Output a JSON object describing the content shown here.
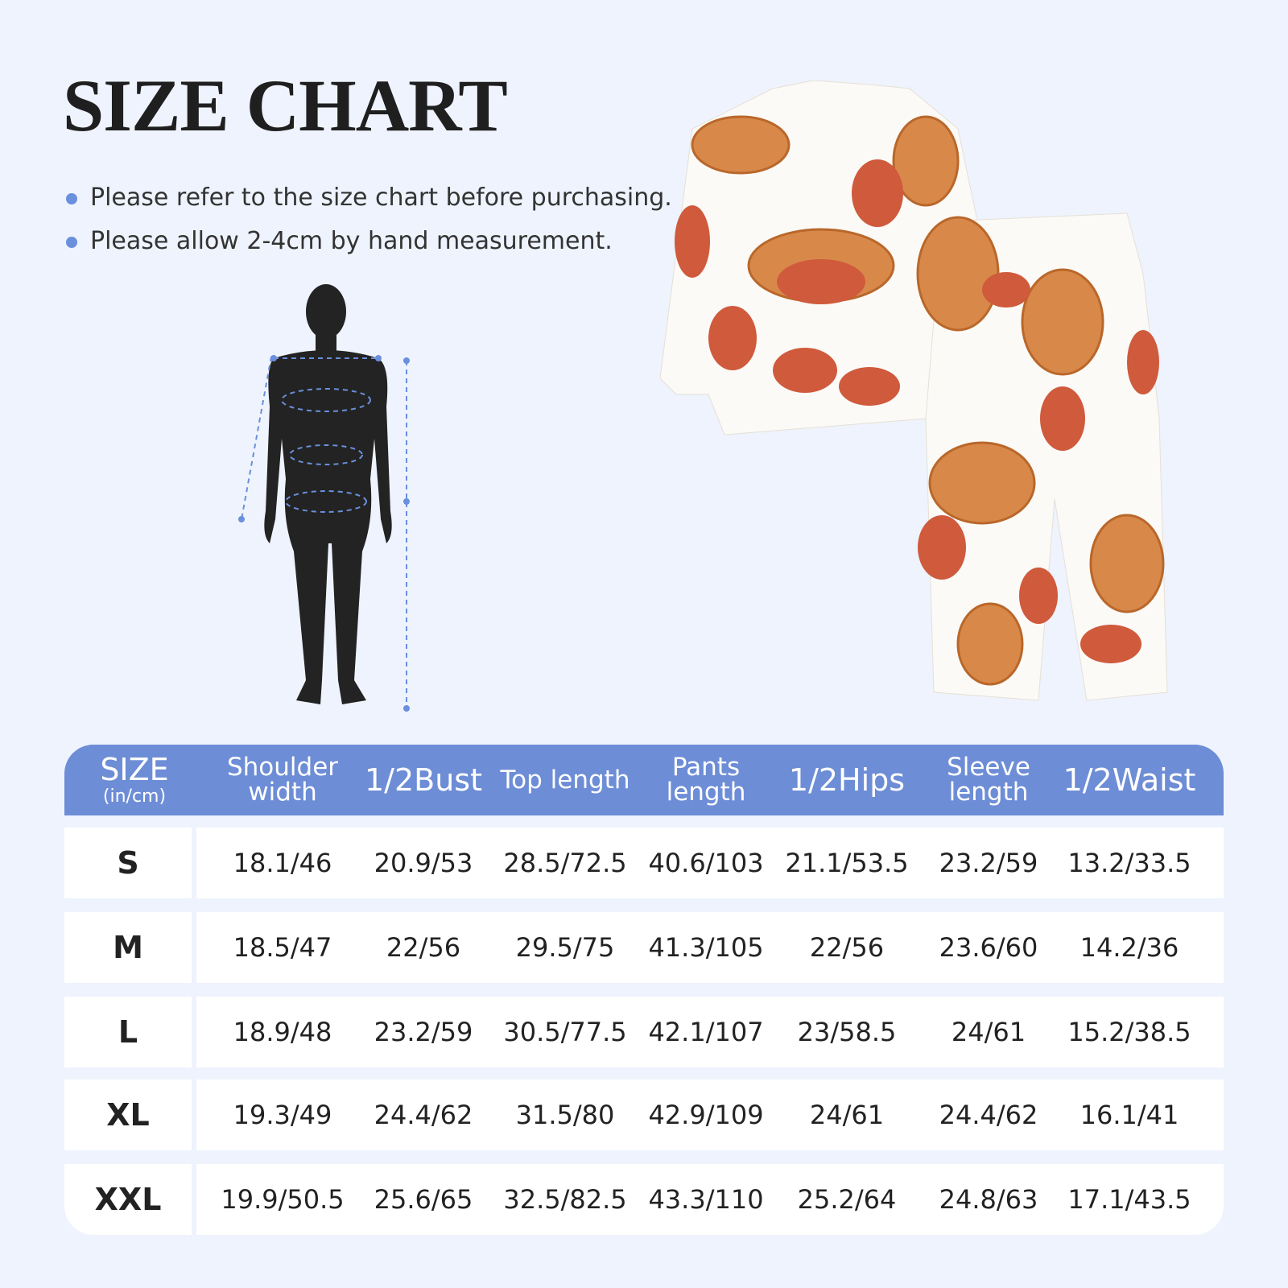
{
  "header": {
    "title": "SIZE CHART"
  },
  "notes": [
    "Please refer to the size chart before purchasing.",
    "Please allow 2-4cm by hand measurement."
  ],
  "table": {
    "size_header": {
      "label": "SIZE",
      "unit": "(in/cm)"
    },
    "columns": [
      "Shoulder width",
      "1/2Bust",
      "Top length",
      "Pants length",
      "1/2Hips",
      "Sleeve length",
      "1/2Waist"
    ],
    "rows": [
      {
        "size": "S",
        "cells": [
          "18.1/46",
          "20.9/53",
          "28.5/72.5",
          "40.6/103",
          "21.1/53.5",
          "23.2/59",
          "13.2/33.5"
        ]
      },
      {
        "size": "M",
        "cells": [
          "18.5/47",
          "22/56",
          "29.5/75",
          "41.3/105",
          "22/56",
          "23.6/60",
          "14.2/36"
        ]
      },
      {
        "size": "L",
        "cells": [
          "18.9/48",
          "23.2/59",
          "30.5/77.5",
          "42.1/107",
          "23/58.5",
          "24/61",
          "15.2/38.5"
        ]
      },
      {
        "size": "XL",
        "cells": [
          "19.3/49",
          "24.4/62",
          "31.5/80",
          "42.9/109",
          "24/61",
          "24.4/62",
          "16.1/41"
        ]
      },
      {
        "size": "XXL",
        "cells": [
          "19.9/50.5",
          "25.6/65",
          "32.5/82.5",
          "43.3/110",
          "25.2/64",
          "24.8/63",
          "17.1/43.5"
        ]
      }
    ]
  }
}
